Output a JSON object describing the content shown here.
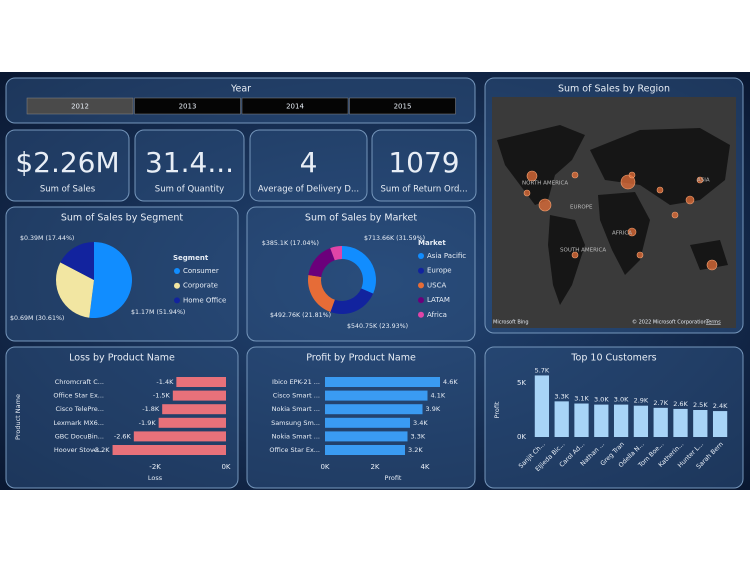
{
  "slicer": {
    "title": "Year",
    "options": [
      "2012",
      "2013",
      "2014",
      "2015"
    ],
    "selected": "2012"
  },
  "cards": [
    {
      "value": "$2.26M",
      "label": "Sum of Sales"
    },
    {
      "value": "31.4...",
      "label": "Sum of Quantity"
    },
    {
      "value": "4",
      "label": "Average of Delivery D..."
    },
    {
      "value": "1079",
      "label": "Sum of Return Ord..."
    }
  ],
  "map": {
    "title": "Sum of Sales by Region",
    "labels": [
      "NORTH AMERICA",
      "EUROPE",
      "ASIA",
      "AFRICA",
      "SOUTH AMERICA"
    ],
    "provider": "Microsoft Bing",
    "copyright": "© 2022 Microsoft Corporation",
    "terms": "Terms"
  },
  "chart_data": [
    {
      "type": "pie",
      "title": "Sum of Sales by Segment",
      "legend_title": "Segment",
      "categories": [
        "Consumer",
        "Corporate",
        "Home Office"
      ],
      "values": [
        1.17,
        0.69,
        0.39
      ],
      "value_labels": [
        "$1.17M (51.94%)",
        "$0.69M (30.61%)",
        "$0.39M (17.44%)"
      ],
      "colors": [
        "#118dff",
        "#f2e6a2",
        "#12239e"
      ]
    },
    {
      "type": "donut",
      "title": "Sum of Sales by Market",
      "legend_title": "Market",
      "categories": [
        "Asia Pacific",
        "Europe",
        "USCA",
        "LATAM",
        "Africa"
      ],
      "values": [
        713.66,
        540.75,
        492.76,
        385.1,
        127.2
      ],
      "value_labels": [
        "$713.66K (31.59%)",
        "$540.75K (23.93%)",
        "$492.76K (21.81%)",
        "$385.1K (17.04%)",
        null
      ],
      "colors": [
        "#118dff",
        "#12239e",
        "#e66c37",
        "#6b007b",
        "#e044a7"
      ]
    },
    {
      "type": "hbar",
      "title": "Loss by Product Name",
      "x_label": "Loss",
      "y_label": "Product Name",
      "categories": [
        "Chromcraft C...",
        "Office Star Ex...",
        "Cisco TelePre...",
        "Lexmark MX6...",
        "GBC DocuBin...",
        "Hoover Stove..."
      ],
      "values": [
        -1.4,
        -1.5,
        -1.8,
        -1.9,
        -2.6,
        -3.2
      ],
      "value_labels": [
        "-1.4K",
        "-1.5K",
        "-1.8K",
        "-1.9K",
        "-2.6K",
        "-3.2K"
      ],
      "color": "#e8717a",
      "xlim": [
        -3.3,
        0
      ],
      "xticks": [
        {
          "value": -2,
          "label": "-2K"
        },
        {
          "value": 0,
          "label": "0K"
        }
      ]
    },
    {
      "type": "hbar",
      "title": "Profit by Product Name",
      "x_label": "Profit",
      "categories": [
        "Ibico EPK-21 ...",
        "Cisco Smart ...",
        "Nokia Smart ...",
        "Samsung Sm...",
        "Nokia Smart ...",
        "Office Star Ex..."
      ],
      "values": [
        4.6,
        4.1,
        3.9,
        3.4,
        3.3,
        3.2
      ],
      "value_labels": [
        "4.6K",
        "4.1K",
        "3.9K",
        "3.4K",
        "3.3K",
        "3.2K"
      ],
      "color": "#3a9bf2",
      "xlim": [
        0,
        4.8
      ],
      "xticks": [
        {
          "value": 0,
          "label": "0K"
        },
        {
          "value": 2,
          "label": "2K"
        },
        {
          "value": 4,
          "label": "4K"
        }
      ]
    },
    {
      "type": "vbar",
      "title": "Top 10 Customers",
      "y_label": "Profit",
      "categories": [
        "Sanjit Ch...",
        "Eljieda Bic...",
        "Carol Ad...",
        "Nathan ...",
        "Greg Tran",
        "Odella N...",
        "Tom Boe...",
        "Katherin...",
        "Hunter L...",
        "Sarah Bern"
      ],
      "values": [
        5.7,
        3.3,
        3.1,
        3.0,
        3.0,
        2.9,
        2.7,
        2.6,
        2.5,
        2.4
      ],
      "value_labels": [
        "5.7K",
        "3.3K",
        "3.1K",
        "3.0K",
        "3.0K",
        "2.9K",
        "2.7K",
        "2.6K",
        "2.5K",
        "2.4K"
      ],
      "color": "#a8d4f7",
      "ylim": [
        0,
        6
      ],
      "yticks": [
        {
          "value": 0,
          "label": "0K"
        },
        {
          "value": 5,
          "label": "5K"
        }
      ]
    }
  ]
}
